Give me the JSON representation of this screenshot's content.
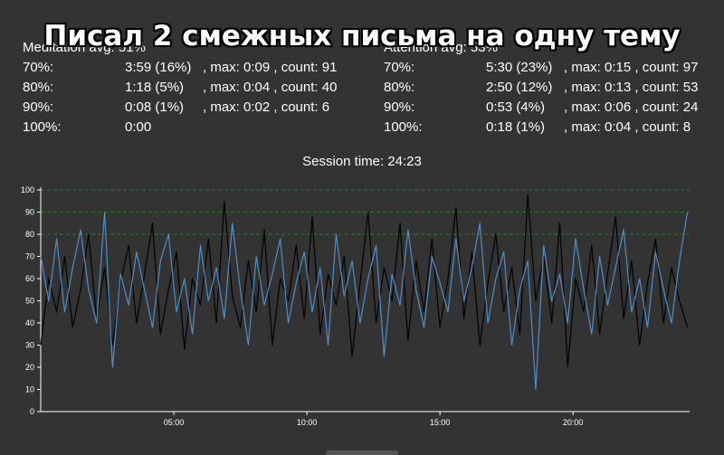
{
  "overlay_title": "Писал 2 смежных письма на одну тему",
  "meditation": {
    "header": "Meditation avg: 51%",
    "rows": [
      {
        "level": "70%:",
        "time": "3:59 (16%)",
        "rest": ", max: 0:09 , count: 91"
      },
      {
        "level": "80%:",
        "time": "1:18 (5%)",
        "rest": ", max: 0:04 , count: 40"
      },
      {
        "level": "90%:",
        "time": "0:08 (1%)",
        "rest": ", max: 0:02 , count: 6"
      },
      {
        "level": "100%:",
        "time": "0:00",
        "rest": ""
      }
    ]
  },
  "attention": {
    "header": "Attention avg: 53%",
    "rows": [
      {
        "level": "70%:",
        "time": "5:30 (23%)",
        "rest": ", max: 0:15 , count: 97"
      },
      {
        "level": "80%:",
        "time": "2:50 (12%)",
        "rest": ", max: 0:13 , count: 53"
      },
      {
        "level": "90%:",
        "time": "0:53 (4%)",
        "rest": ", max: 0:06 , count: 24"
      },
      {
        "level": "100%:",
        "time": "0:18 (1%)",
        "rest": ", max: 0:04 , count: 8"
      }
    ]
  },
  "session_time": "Session time: 24:23",
  "colors": {
    "attention_line": "#000000",
    "meditation_line": "#4f8fc6",
    "threshold_line": "#2a7a2a",
    "axis": "#ffffff"
  },
  "chart_data": {
    "type": "line",
    "title": "",
    "xlabel": "",
    "ylabel": "",
    "ylim": [
      0,
      100
    ],
    "xlim": [
      0,
      24.38
    ],
    "y_ticks": [
      0,
      10,
      20,
      30,
      40,
      50,
      60,
      70,
      80,
      90,
      100
    ],
    "x_ticks": [
      {
        "value": 5,
        "label": "05:00"
      },
      {
        "value": 10,
        "label": "10:00"
      },
      {
        "value": 15,
        "label": "15:00"
      },
      {
        "value": 20,
        "label": "20:00"
      }
    ],
    "thresholds": [
      80,
      90,
      100
    ],
    "series": [
      {
        "name": "",
        "color": "#000000",
        "points": [
          [
            0.0,
            30
          ],
          [
            0.3,
            60
          ],
          [
            0.6,
            45
          ],
          [
            0.9,
            70
          ],
          [
            1.2,
            38
          ],
          [
            1.5,
            55
          ],
          [
            1.8,
            80
          ],
          [
            2.1,
            42
          ],
          [
            2.4,
            65
          ],
          [
            2.7,
            30
          ],
          [
            3.0,
            58
          ],
          [
            3.3,
            75
          ],
          [
            3.6,
            40
          ],
          [
            3.9,
            62
          ],
          [
            4.2,
            85
          ],
          [
            4.5,
            35
          ],
          [
            4.8,
            55
          ],
          [
            5.1,
            72
          ],
          [
            5.4,
            28
          ],
          [
            5.7,
            60
          ],
          [
            6.0,
            48
          ],
          [
            6.3,
            78
          ],
          [
            6.6,
            40
          ],
          [
            6.9,
            95
          ],
          [
            7.2,
            52
          ],
          [
            7.5,
            38
          ],
          [
            7.8,
            68
          ],
          [
            8.1,
            45
          ],
          [
            8.4,
            82
          ],
          [
            8.7,
            30
          ],
          [
            9.0,
            60
          ],
          [
            9.3,
            50
          ],
          [
            9.6,
            75
          ],
          [
            9.9,
            42
          ],
          [
            10.2,
            88
          ],
          [
            10.5,
            35
          ],
          [
            10.8,
            62
          ],
          [
            11.1,
            48
          ],
          [
            11.4,
            70
          ],
          [
            11.7,
            25
          ],
          [
            12.0,
            58
          ],
          [
            12.3,
            90
          ],
          [
            12.6,
            40
          ],
          [
            12.9,
            65
          ],
          [
            13.2,
            50
          ],
          [
            13.5,
            85
          ],
          [
            13.8,
            32
          ],
          [
            14.1,
            68
          ],
          [
            14.4,
            45
          ],
          [
            14.7,
            78
          ],
          [
            15.0,
            38
          ],
          [
            15.3,
            60
          ],
          [
            15.6,
            92
          ],
          [
            15.9,
            42
          ],
          [
            16.2,
            72
          ],
          [
            16.5,
            30
          ],
          [
            16.8,
            58
          ],
          [
            17.1,
            80
          ],
          [
            17.4,
            45
          ],
          [
            17.7,
            65
          ],
          [
            18.0,
            35
          ],
          [
            18.3,
            98
          ],
          [
            18.6,
            50
          ],
          [
            18.9,
            70
          ],
          [
            19.2,
            40
          ],
          [
            19.5,
            85
          ],
          [
            19.8,
            20
          ],
          [
            20.1,
            60
          ],
          [
            20.4,
            45
          ],
          [
            20.7,
            75
          ],
          [
            21.0,
            35
          ],
          [
            21.3,
            62
          ],
          [
            21.6,
            88
          ],
          [
            21.9,
            42
          ],
          [
            22.2,
            68
          ],
          [
            22.5,
            30
          ],
          [
            22.8,
            58
          ],
          [
            23.1,
            78
          ],
          [
            23.4,
            40
          ],
          [
            23.7,
            65
          ],
          [
            24.0,
            50
          ],
          [
            24.3,
            38
          ]
        ]
      },
      {
        "name": "",
        "color": "#4f8fc6",
        "points": [
          [
            0.0,
            70
          ],
          [
            0.3,
            50
          ],
          [
            0.6,
            78
          ],
          [
            0.9,
            45
          ],
          [
            1.2,
            65
          ],
          [
            1.5,
            82
          ],
          [
            1.8,
            55
          ],
          [
            2.1,
            40
          ],
          [
            2.4,
            90
          ],
          [
            2.7,
            20
          ],
          [
            3.0,
            62
          ],
          [
            3.3,
            48
          ],
          [
            3.6,
            72
          ],
          [
            3.9,
            55
          ],
          [
            4.2,
            38
          ],
          [
            4.5,
            68
          ],
          [
            4.8,
            80
          ],
          [
            5.1,
            45
          ],
          [
            5.4,
            60
          ],
          [
            5.7,
            35
          ],
          [
            6.0,
            75
          ],
          [
            6.3,
            50
          ],
          [
            6.6,
            65
          ],
          [
            6.9,
            42
          ],
          [
            7.2,
            85
          ],
          [
            7.5,
            55
          ],
          [
            7.8,
            30
          ],
          [
            8.1,
            70
          ],
          [
            8.4,
            48
          ],
          [
            8.7,
            62
          ],
          [
            9.0,
            78
          ],
          [
            9.3,
            40
          ],
          [
            9.6,
            58
          ],
          [
            9.9,
            72
          ],
          [
            10.2,
            45
          ],
          [
            10.5,
            65
          ],
          [
            10.8,
            30
          ],
          [
            11.1,
            80
          ],
          [
            11.4,
            52
          ],
          [
            11.7,
            68
          ],
          [
            12.0,
            40
          ],
          [
            12.3,
            60
          ],
          [
            12.6,
            75
          ],
          [
            12.9,
            25
          ],
          [
            13.2,
            62
          ],
          [
            13.5,
            48
          ],
          [
            13.8,
            82
          ],
          [
            14.1,
            55
          ],
          [
            14.4,
            38
          ],
          [
            14.7,
            70
          ],
          [
            15.0,
            58
          ],
          [
            15.3,
            45
          ],
          [
            15.6,
            78
          ],
          [
            15.9,
            50
          ],
          [
            16.2,
            65
          ],
          [
            16.5,
            85
          ],
          [
            16.8,
            40
          ],
          [
            17.1,
            60
          ],
          [
            17.4,
            72
          ],
          [
            17.7,
            30
          ],
          [
            18.0,
            55
          ],
          [
            18.3,
            68
          ],
          [
            18.6,
            10
          ],
          [
            18.9,
            75
          ],
          [
            19.2,
            50
          ],
          [
            19.5,
            62
          ],
          [
            19.8,
            40
          ],
          [
            20.1,
            78
          ],
          [
            20.4,
            55
          ],
          [
            20.7,
            35
          ],
          [
            21.0,
            70
          ],
          [
            21.3,
            48
          ],
          [
            21.6,
            65
          ],
          [
            21.9,
            82
          ],
          [
            22.2,
            45
          ],
          [
            22.5,
            60
          ],
          [
            22.8,
            38
          ],
          [
            23.1,
            72
          ],
          [
            23.4,
            55
          ],
          [
            23.7,
            40
          ],
          [
            24.0,
            68
          ],
          [
            24.3,
            90
          ]
        ]
      }
    ]
  }
}
